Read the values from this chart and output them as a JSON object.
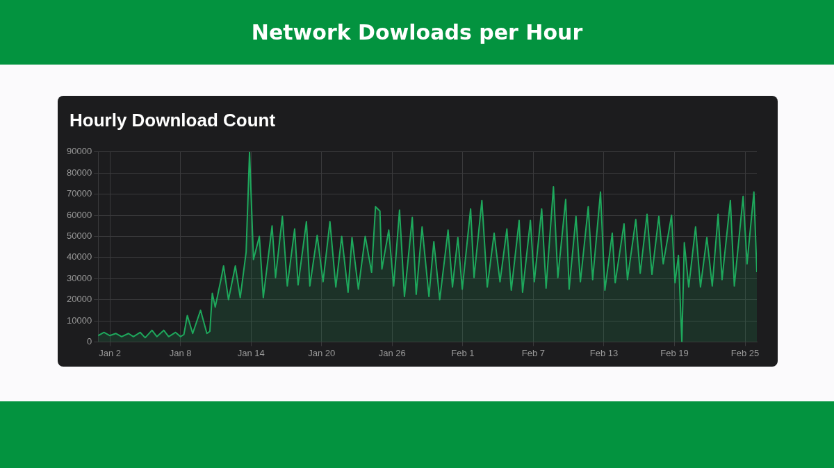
{
  "chart_data": {
    "type": "area",
    "title": "Network Dowloads per Hour",
    "subtitle": "Hourly Download Count",
    "xlim": [
      "--01-01T00:00",
      "--02-26T00:00"
    ],
    "xticks": [
      {
        "value": "--01-02",
        "label": "Jan 2"
      },
      {
        "value": "--01-08",
        "label": "Jan 8"
      },
      {
        "value": "--01-14",
        "label": "Jan 14"
      },
      {
        "value": "--01-20",
        "label": "Jan 20"
      },
      {
        "value": "--01-26",
        "label": "Jan 26"
      },
      {
        "value": "--02-01",
        "label": "Feb 1"
      },
      {
        "value": "--02-07",
        "label": "Feb 7"
      },
      {
        "value": "--02-13",
        "label": "Feb 13"
      },
      {
        "value": "--02-19",
        "label": "Feb 19"
      },
      {
        "value": "--02-25",
        "label": "Feb 25"
      }
    ],
    "ylim": [
      0,
      90000
    ],
    "yticks": [
      0,
      10000,
      20000,
      30000,
      40000,
      50000,
      60000,
      70000,
      80000,
      90000
    ],
    "grid": true,
    "legend": false,
    "marker": "none",
    "line_style": "solid",
    "series": [
      {
        "color": "#1ea85c",
        "x": [
          "--01-01T00:00",
          "--01-01T12:00",
          "--01-02T00:00",
          "--01-02T12:00",
          "--01-03T00:00",
          "--01-03T14:00",
          "--01-04T00:00",
          "--01-04T14:00",
          "--01-05T00:00",
          "--01-05T14:00",
          "--01-06T00:00",
          "--01-06T14:00",
          "--01-07T00:00",
          "--01-07T14:00",
          "--01-08T00:00",
          "--01-08T07:00",
          "--01-08T14:00",
          "--01-09T01:00",
          "--01-09T17:00",
          "--01-10T06:00",
          "--01-10T12:00",
          "--01-10T17:00",
          "--01-10T23:00",
          "--01-11T11:00",
          "--01-11T16:00",
          "--01-12T02:00",
          "--01-12T16:00",
          "--01-13T02:00",
          "--01-13T14:00",
          "--01-13T21:00",
          "--01-14T05:00",
          "--01-14T17:00",
          "--01-15T01:00",
          "--01-15T19:00",
          "--01-16T02:00",
          "--01-16T16:00",
          "--01-17T02:00",
          "--01-17T17:00",
          "--01-18T00:00",
          "--01-18T17:00",
          "--01-19T00:00",
          "--01-19T15:00",
          "--01-20T03:00",
          "--01-20T17:00",
          "--01-21T05:00",
          "--01-21T17:00",
          "--01-22T06:00",
          "--01-22T14:00",
          "--01-23T03:00",
          "--01-23T17:00",
          "--01-24T06:00",
          "--01-24T14:00",
          "--01-24T23:00",
          "--01-25T03:00",
          "--01-25T17:00",
          "--01-26T03:00",
          "--01-26T15:00",
          "--01-27T01:00",
          "--01-27T17:00",
          "--01-28T01:00",
          "--01-28T13:00",
          "--01-29T03:00",
          "--01-29T13:00",
          "--01-30T01:00",
          "--01-30T18:00",
          "--01-31T03:00",
          "--01-31T14:00",
          "--01-31T23:00",
          "--02-01T16:00",
          "--02-01T23:00",
          "--02-02T15:00",
          "--02-03T02:00",
          "--02-03T16:00",
          "--02-04T04:00",
          "--02-04T18:00",
          "--02-05T03:00",
          "--02-05T19:00",
          "--02-06T02:00",
          "--02-06T18:00",
          "--02-07T02:00",
          "--02-07T17:00",
          "--02-08T02:00",
          "--02-08T17:00",
          "--02-09T02:00",
          "--02-09T18:00",
          "--02-10T01:00",
          "--02-10T15:00",
          "--02-11T00:00",
          "--02-11T16:00",
          "--02-12T01:00",
          "--02-12T17:00",
          "--02-13T02:00",
          "--02-13T17:00",
          "--02-13T23:00",
          "--02-14T17:00",
          "--02-15T00:00",
          "--02-15T17:00",
          "--02-16T02:00",
          "--02-16T16:00",
          "--02-17T02:00",
          "--02-17T16:00",
          "--02-18T01:00",
          "--02-18T18:00",
          "--02-19T01:00",
          "--02-19T08:00",
          "--02-19T15:00",
          "--02-19T20:00",
          "--02-20T05:00",
          "--02-20T19:00",
          "--02-21T05:00",
          "--02-21T18:00",
          "--02-22T05:00",
          "--02-22T17:00",
          "--02-23T01:00",
          "--02-23T18:00",
          "--02-24T02:00",
          "--02-24T20:00",
          "--02-25T04:00",
          "--02-25T18:00",
          "--02-26T00:00"
        ],
        "values": [
          3000,
          4500,
          3000,
          4000,
          2500,
          4000,
          2500,
          4500,
          2000,
          5500,
          2500,
          5500,
          2500,
          4500,
          2500,
          3500,
          12500,
          4000,
          15000,
          4000,
          5000,
          23000,
          16500,
          30000,
          36000,
          20000,
          36000,
          21000,
          42500,
          90000,
          39000,
          50000,
          21000,
          55000,
          30500,
          59500,
          26500,
          53500,
          27000,
          57000,
          26500,
          50500,
          28500,
          57000,
          26000,
          50000,
          23500,
          49500,
          25000,
          50000,
          33000,
          64000,
          62000,
          34500,
          53000,
          26500,
          62500,
          21500,
          59000,
          22500,
          54500,
          21500,
          47500,
          20000,
          53000,
          26000,
          49500,
          25000,
          63000,
          30500,
          67000,
          26000,
          51500,
          28500,
          53500,
          24500,
          57500,
          23500,
          57500,
          28500,
          63000,
          25500,
          73500,
          30500,
          67500,
          25000,
          59500,
          28500,
          64000,
          29500,
          71000,
          24500,
          51500,
          28000,
          56000,
          29500,
          58000,
          32500,
          60500,
          32000,
          59500,
          37000,
          60000,
          28000,
          41000,
          0,
          47000,
          26000,
          54500,
          26000,
          49500,
          26500,
          60500,
          29500,
          67000,
          26500,
          69000,
          37000,
          71000,
          33000
        ]
      }
    ]
  }
}
